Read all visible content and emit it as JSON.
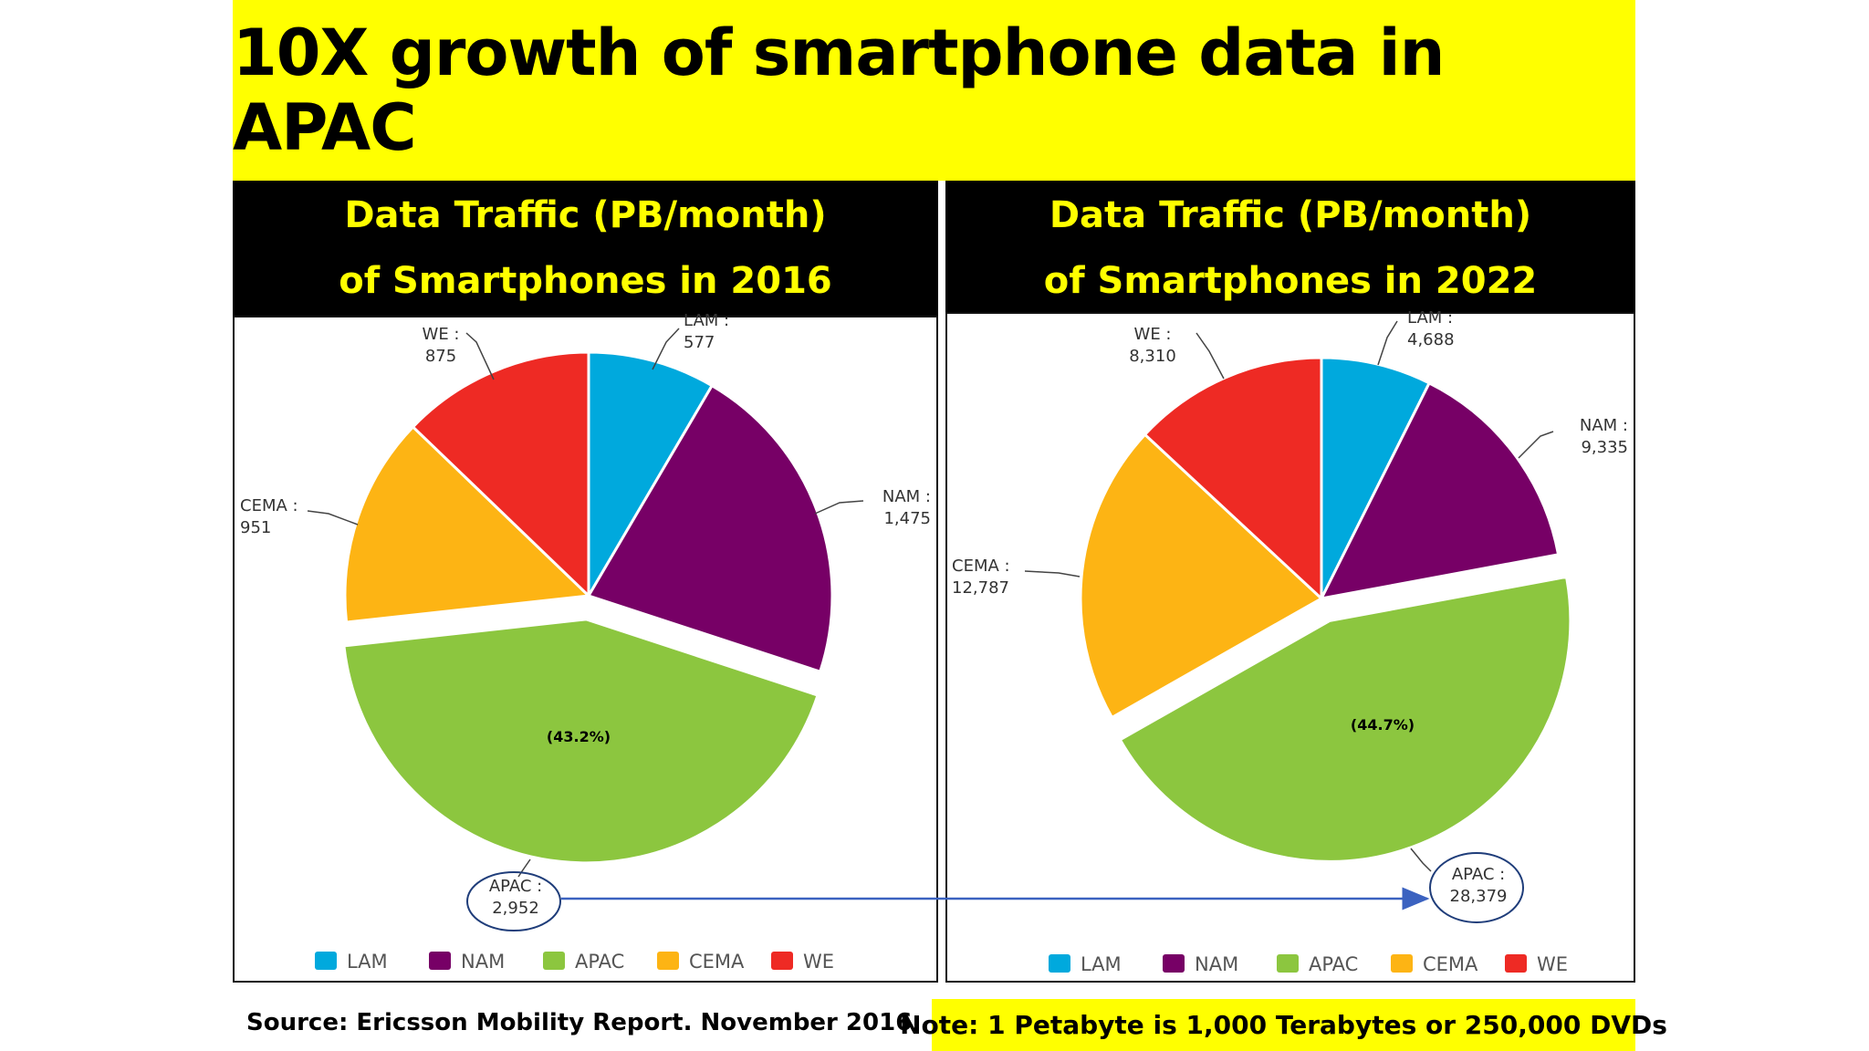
{
  "title": "10X growth of smartphone data in APAC",
  "panels": [
    {
      "header_line1": "Data Traffic (PB/month)",
      "header_line2": "of Smartphones in 2016"
    },
    {
      "header_line1": "Data Traffic (PB/month)",
      "header_line2": "of Smartphones in 2022"
    }
  ],
  "chart_data": [
    {
      "type": "pie",
      "title": "Data Traffic (PB/month) of Smartphones in 2016",
      "categories": [
        "LAM",
        "NAM",
        "APAC",
        "CEMA",
        "WE"
      ],
      "values": [
        577,
        1475,
        2952,
        951,
        875
      ],
      "value_labels": [
        "577",
        "1,475",
        "2,952",
        "951",
        "875"
      ],
      "exploded": "APAC",
      "highlight_percent": "(43.2%)",
      "legend_position": "bottom"
    },
    {
      "type": "pie",
      "title": "Data Traffic (PB/month) of Smartphones in 2022",
      "categories": [
        "LAM",
        "NAM",
        "APAC",
        "CEMA",
        "WE"
      ],
      "values": [
        4688,
        9335,
        28379,
        12787,
        8310
      ],
      "value_labels": [
        "4,688",
        "9,335",
        "28,379",
        "12,787",
        "8,310"
      ],
      "exploded": "APAC",
      "highlight_percent": "(44.7%)",
      "legend_position": "bottom"
    }
  ],
  "colors": {
    "LAM": "#00a9dd",
    "NAM": "#770066",
    "APAC": "#8cc63f",
    "CEMA": "#fdb414",
    "WE": "#ee2a24",
    "arrow": "#3b62c0",
    "banner": "#ffff00"
  },
  "footer": {
    "source": "Source: Ericsson Mobility Report. November 2016",
    "note": "Note: 1 Petabyte is 1,000 Terabytes or 250,000 DVDs"
  }
}
